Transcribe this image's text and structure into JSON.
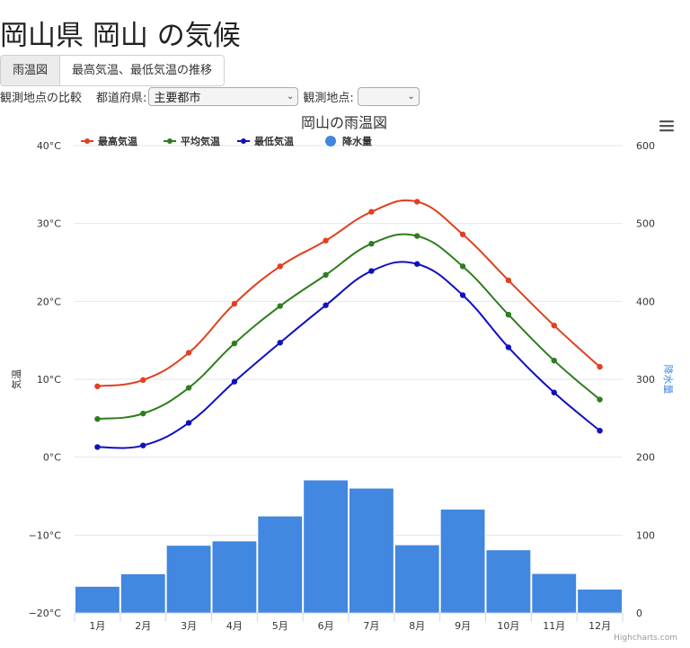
{
  "page": {
    "title": "岡山県 岡山 の気候"
  },
  "tabs": [
    {
      "label": "雨温図",
      "active": true
    },
    {
      "label": "最高気温、最低気温の推移",
      "active": false
    }
  ],
  "filters": {
    "compare_label": "観測地点の比較",
    "prefecture_label": "都道府県:",
    "prefecture_value": "主要都市",
    "station_label": "観測地点:",
    "station_value": ""
  },
  "credit": "Highcharts.com",
  "colors": {
    "max": "#e0401e",
    "avg": "#2f7d1e",
    "min": "#1010c0",
    "precip": "#4287e0"
  },
  "chart_data": {
    "type": "bar",
    "title": "岡山の雨温図",
    "categories": [
      "1月",
      "2月",
      "3月",
      "4月",
      "5月",
      "6月",
      "7月",
      "8月",
      "9月",
      "10月",
      "11月",
      "12月"
    ],
    "y_left": {
      "label": "気温",
      "min": -20,
      "max": 40,
      "ticks": [
        -20,
        -10,
        0,
        10,
        20,
        30,
        40
      ],
      "tick_labels": [
        "−20°C",
        "−10°C",
        "0°C",
        "10°C",
        "20°C",
        "30°C",
        "40°C"
      ]
    },
    "y_right": {
      "label": "降水量",
      "min": 0,
      "max": 600,
      "ticks": [
        0,
        100,
        200,
        300,
        400,
        500,
        600
      ],
      "tick_labels": [
        "0",
        "100",
        "200",
        "300",
        "400",
        "500",
        "600"
      ]
    },
    "legend_position": "top-left",
    "series": [
      {
        "name": "最高気温",
        "type": "line",
        "axis": "left",
        "values": [
          9.1,
          9.9,
          13.4,
          19.7,
          24.5,
          27.8,
          31.5,
          32.8,
          28.6,
          22.7,
          16.9,
          11.6
        ]
      },
      {
        "name": "平均気温",
        "type": "line",
        "axis": "left",
        "values": [
          4.9,
          5.6,
          8.9,
          14.6,
          19.4,
          23.4,
          27.4,
          28.4,
          24.5,
          18.3,
          12.4,
          7.4
        ]
      },
      {
        "name": "最低気温",
        "type": "line",
        "axis": "left",
        "values": [
          1.3,
          1.5,
          4.4,
          9.7,
          14.7,
          19.5,
          23.9,
          24.8,
          20.8,
          14.1,
          8.3,
          3.4
        ]
      },
      {
        "name": "降水量",
        "type": "column",
        "axis": "right",
        "values": [
          34.2,
          50.3,
          86.9,
          92.5,
          124.5,
          170.8,
          160.3,
          87.5,
          133.3,
          81.1,
          50.7,
          30.6
        ]
      }
    ]
  }
}
